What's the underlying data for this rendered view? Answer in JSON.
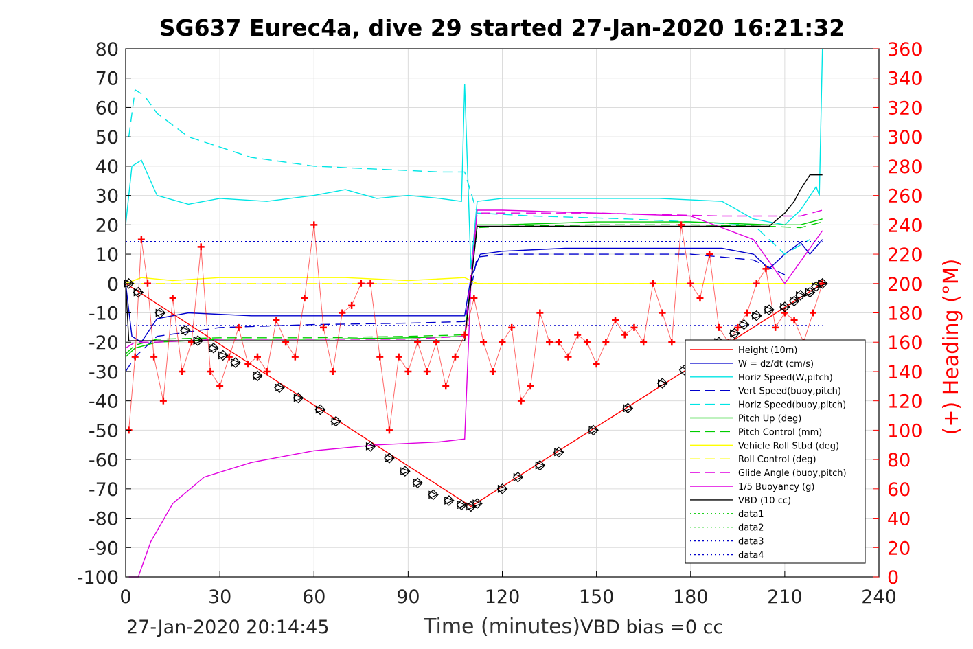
{
  "chart_data": {
    "type": "line",
    "title": "SG637 Eurec4a, dive 29 started 27-Jan-2020 16:21:32",
    "xlabel": "Time (minutes)",
    "ylabel": "",
    "y2label": "(+) Heading (°M)",
    "xlim": [
      0,
      240
    ],
    "ylim": [
      -100,
      80
    ],
    "y2lim": [
      0,
      360
    ],
    "x_ticks": [
      "0",
      "30",
      "60",
      "90",
      "120",
      "150",
      "180",
      "210",
      "240"
    ],
    "y_ticks": [
      "80",
      "70",
      "60",
      "50",
      "40",
      "30",
      "20",
      "10",
      "0",
      "-10",
      "-20",
      "-30",
      "-40",
      "-50",
      "-60",
      "-70",
      "-80",
      "-90",
      "-100"
    ],
    "y2_ticks": [
      "360",
      "340",
      "320",
      "300",
      "280",
      "260",
      "240",
      "220",
      "200",
      "180",
      "160",
      "140",
      "120",
      "100",
      "80",
      "60",
      "40",
      "20",
      "0"
    ],
    "grid": true,
    "legend_position": "bottom-right",
    "series": [
      {
        "name": "Height (10m)",
        "color": "#ff0000",
        "style": "solid",
        "x": [
          0,
          110,
          222
        ],
        "y": [
          0,
          -76,
          0
        ]
      },
      {
        "name": "W = dz/dt (cm/s)",
        "color": "#0000cc",
        "style": "solid",
        "x": [
          0,
          2,
          5,
          10,
          20,
          40,
          60,
          80,
          100,
          108,
          110,
          113,
          120,
          140,
          160,
          190,
          200,
          205,
          210,
          215,
          218,
          222
        ],
        "y": [
          0,
          -18,
          -20,
          -12,
          -10,
          -11,
          -11,
          -11,
          -11,
          -11,
          2,
          10,
          11,
          12,
          12,
          12,
          10,
          5,
          10,
          14,
          10,
          15
        ]
      },
      {
        "name": "Horiz Speed(W,pitch)",
        "color": "#00e5e5",
        "style": "solid",
        "x": [
          0,
          2,
          5,
          10,
          20,
          30,
          45,
          60,
          70,
          80,
          90,
          100,
          107,
          108,
          110,
          112,
          120,
          150,
          170,
          190,
          200,
          210,
          215,
          220,
          221,
          222
        ],
        "y": [
          20,
          40,
          42,
          30,
          27,
          29,
          28,
          30,
          32,
          29,
          30,
          29,
          28,
          68,
          5,
          28,
          29,
          29,
          29,
          28,
          22,
          20,
          25,
          33,
          30,
          80
        ]
      },
      {
        "name": "Vert Speed(buoy,pitch)",
        "color": "#0000cc",
        "style": "dashed",
        "x": [
          0,
          3,
          10,
          30,
          60,
          90,
          108,
          112,
          120,
          150,
          180,
          200,
          210
        ],
        "y": [
          -30,
          -25,
          -18,
          -15,
          -14,
          -13.5,
          -13,
          9,
          10,
          10,
          10,
          8,
          3
        ]
      },
      {
        "name": "Horiz Speed(buoy,pitch)",
        "color": "#00e5e5",
        "style": "dashed",
        "x": [
          1,
          3,
          6,
          10,
          20,
          40,
          60,
          80,
          100,
          108,
          112,
          130,
          160,
          200,
          210,
          218
        ],
        "y": [
          50,
          66,
          64,
          58,
          50,
          43,
          40,
          39,
          38,
          38,
          24,
          23,
          22,
          20,
          10,
          15
        ]
      },
      {
        "name": "Pitch Up (deg)",
        "color": "#00cc00",
        "style": "solid",
        "x": [
          0,
          3,
          10,
          30,
          60,
          90,
          108,
          112,
          120,
          150,
          180,
          205,
          215,
          222
        ],
        "y": [
          -25,
          -22,
          -20,
          -19,
          -19,
          -18.5,
          -18,
          20,
          20,
          21,
          21,
          20,
          20,
          22
        ]
      },
      {
        "name": "Pitch Control (mm)",
        "color": "#00cc00",
        "style": "dashed",
        "x": [
          0,
          3,
          10,
          30,
          60,
          90,
          108,
          112,
          120,
          150,
          180,
          205,
          215,
          222
        ],
        "y": [
          -24,
          -21,
          -19,
          -18.5,
          -18.5,
          -18,
          -17.5,
          19,
          19.5,
          20,
          20,
          19.5,
          19,
          21
        ]
      },
      {
        "name": "Vehicle Roll Stbd (deg)",
        "color": "#ffff00",
        "style": "solid",
        "x": [
          0,
          5,
          15,
          30,
          50,
          70,
          90,
          108,
          112,
          130,
          160,
          190,
          222
        ],
        "y": [
          0,
          2,
          1,
          2,
          2,
          2,
          1,
          2,
          0,
          0,
          0,
          0,
          0
        ]
      },
      {
        "name": "Roll Control (deg)",
        "color": "#ffff00",
        "style": "dashed",
        "x": [
          0,
          222
        ],
        "y": [
          0,
          0
        ]
      },
      {
        "name": "Glide Angle (buoy,pitch)",
        "color": "#e000e0",
        "style": "dashed",
        "x": [
          0,
          3,
          10,
          30,
          60,
          90,
          108,
          112,
          150,
          190,
          215,
          222
        ],
        "y": [
          -22,
          -20,
          -20,
          -19,
          -19,
          -19,
          -18,
          24,
          24,
          23,
          23,
          25
        ]
      },
      {
        "name": "1/5 Buoyancy (g)",
        "color": "#e000e0",
        "style": "solid",
        "x": [
          1,
          4,
          8,
          15,
          25,
          40,
          60,
          80,
          100,
          108,
          110,
          112,
          120,
          150,
          180,
          200,
          210,
          222
        ],
        "y": [
          -100,
          -100,
          -88,
          -75,
          -66,
          -61,
          -57,
          -55,
          -54,
          -53,
          0,
          25,
          25,
          24,
          23,
          15,
          0,
          18
        ]
      },
      {
        "name": "VBD (10 cc)",
        "color": "#000000",
        "style": "solid",
        "x": [
          0,
          1,
          108,
          109,
          112,
          205,
          210,
          213,
          215,
          218,
          222
        ],
        "y": [
          0,
          -19.5,
          -19.5,
          -10,
          19.5,
          19.5,
          24,
          28,
          32,
          37,
          37
        ]
      },
      {
        "name": "data1",
        "color": "#00cc00",
        "style": "dotted",
        "x": [],
        "y": []
      },
      {
        "name": "data2",
        "color": "#00cc00",
        "style": "dotted",
        "x": [],
        "y": []
      },
      {
        "name": "data3",
        "color": "#0000cc",
        "style": "dotted",
        "x": [
          0,
          222
        ],
        "y": [
          14.3,
          14.3
        ]
      },
      {
        "name": "data4",
        "color": "#0000cc",
        "style": "dotted",
        "x": [
          0,
          222
        ],
        "y": [
          -14.3,
          -14.3
        ]
      }
    ],
    "heading_series": {
      "name": "(+) Heading (°M)",
      "color": "#ff0000",
      "marker": "+",
      "axis": "right",
      "x": [
        1,
        3,
        5,
        7,
        9,
        12,
        15,
        18,
        21,
        24,
        27,
        30,
        33,
        36,
        39,
        42,
        45,
        48,
        51,
        54,
        57,
        60,
        63,
        66,
        69,
        72,
        75,
        78,
        81,
        84,
        87,
        90,
        93,
        96,
        99,
        102,
        105,
        108,
        111,
        114,
        117,
        120,
        123,
        126,
        129,
        132,
        135,
        138,
        141,
        144,
        147,
        150,
        153,
        156,
        159,
        162,
        165,
        168,
        171,
        174,
        177,
        180,
        183,
        186,
        189,
        192,
        195,
        198,
        201,
        204,
        207,
        210,
        213,
        216,
        219,
        222
      ],
      "y": [
        100,
        150,
        230,
        200,
        150,
        120,
        190,
        140,
        160,
        225,
        140,
        130,
        150,
        170,
        145,
        150,
        140,
        175,
        160,
        150,
        190,
        240,
        170,
        140,
        180,
        185,
        200,
        200,
        150,
        100,
        150,
        140,
        160,
        140,
        160,
        130,
        150,
        165,
        190,
        160,
        140,
        160,
        170,
        120,
        130,
        180,
        160,
        160,
        150,
        165,
        160,
        145,
        160,
        175,
        165,
        170,
        160,
        200,
        180,
        160,
        240,
        200,
        190,
        220,
        170,
        160,
        170,
        180,
        200,
        210,
        170,
        180,
        175,
        160,
        180,
        200
      ]
    },
    "glider_markers": {
      "name": "Height (10m) sample markers",
      "color": "#000000",
      "marker": "diamond-triangle",
      "x": [
        1,
        4,
        11,
        19,
        23,
        28,
        31,
        35,
        42,
        49,
        55,
        62,
        67,
        78,
        84,
        89,
        93,
        98,
        103,
        107,
        110,
        112,
        120,
        125,
        132,
        138,
        149,
        160,
        171,
        178,
        186,
        189,
        194,
        197,
        201,
        205,
        210,
        213,
        215,
        218,
        220,
        222
      ],
      "y": [
        0,
        -3,
        -10,
        -16,
        -19.5,
        -22,
        -24.5,
        -27,
        -31.5,
        -35.5,
        -39,
        -43,
        -47,
        -55.5,
        -59.5,
        -64,
        -68,
        -72,
        -74,
        -75.5,
        -76,
        -75,
        -70,
        -66,
        -62,
        -57.5,
        -50,
        -42.5,
        -34,
        -29.5,
        -25,
        -20,
        -17,
        -14,
        -11,
        -9,
        -8,
        -6,
        -4,
        -3,
        -1,
        0
      ]
    }
  },
  "footer": {
    "left_timestamp": "27-Jan-2020 20:14:45",
    "vbd_bias": "VBD bias =0 cc"
  }
}
